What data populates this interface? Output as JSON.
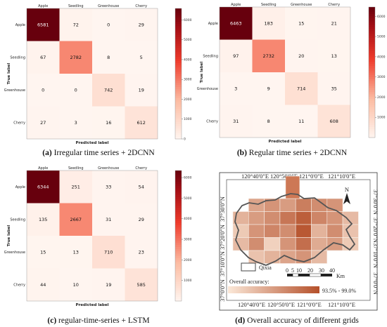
{
  "chart_data": [
    {
      "type": "heatmap",
      "caption_prefix": "(a)",
      "caption_text": " Irregular time series + 2DCNN",
      "categories": [
        "Apple",
        "Seedling",
        "Greenhouse",
        "Cherry"
      ],
      "xlabel": "Predicted label",
      "ylabel": "True label",
      "values": [
        [
          6581,
          72,
          0,
          29
        ],
        [
          67,
          2782,
          8,
          5
        ],
        [
          0,
          0,
          742,
          19
        ],
        [
          27,
          3,
          16,
          612
        ]
      ],
      "colorbar": {
        "min": 0,
        "max": 6581,
        "ticks": [
          0,
          1000,
          2000,
          3000,
          4000,
          5000,
          6000
        ]
      }
    },
    {
      "type": "heatmap",
      "caption_prefix": "(b)",
      "caption_text": " Regular time series + 2DCNN",
      "categories": [
        "Apple",
        "Seedling",
        "Greenhouse",
        "Cherry"
      ],
      "xlabel": "Predicted label",
      "ylabel": "True label",
      "values": [
        [
          6463,
          183,
          15,
          21
        ],
        [
          97,
          2732,
          20,
          13
        ],
        [
          3,
          9,
          714,
          35
        ],
        [
          31,
          8,
          11,
          608
        ]
      ],
      "colorbar": {
        "min": 0,
        "max": 6463,
        "ticks": [
          1000,
          2000,
          3000,
          4000,
          5000,
          6000
        ]
      }
    },
    {
      "type": "heatmap",
      "caption_prefix": "(c)",
      "caption_text": " regular-time-series + LSTM",
      "categories": [
        "Apple",
        "Seedling",
        "Greenhouse",
        "Cherry"
      ],
      "xlabel": "Predicted label",
      "ylabel": "True label",
      "values": [
        [
          6344,
          251,
          33,
          54
        ],
        [
          135,
          2667,
          31,
          29
        ],
        [
          15,
          13,
          710,
          23
        ],
        [
          44,
          10,
          19,
          585
        ]
      ],
      "colorbar": {
        "min": 0,
        "max": 6344,
        "ticks": [
          1000,
          2000,
          3000,
          4000,
          5000,
          6000
        ]
      }
    }
  ],
  "map": {
    "caption_prefix": "(d)",
    "caption_text": " Overall accuracy of different grids",
    "top_lon_labels": [
      "120°40'0\"E",
      "120°50'0\"E",
      "121°0'0\"E",
      "121°10'0\"E"
    ],
    "bottom_lon_labels": [
      "120°40'0\"E",
      "120°50'0\"E",
      "121°0'0\"E",
      "121°10'0\"E"
    ],
    "lat_labels": [
      "37°30'0\"N",
      "37°20'0\"N",
      "37°10'0\"N",
      "37°0'0\"N"
    ],
    "north_label": "N",
    "legend_label": "Qixia",
    "scale_labels": [
      "0",
      "5",
      "10",
      "20",
      "30",
      "40"
    ],
    "scale_unit": "Km",
    "accuracy_label": "Overall accuracy:",
    "accuracy_range": "93.5% - 99.0%",
    "colors": {
      "low": "#fbe8d8",
      "high": "#b5502a"
    }
  }
}
